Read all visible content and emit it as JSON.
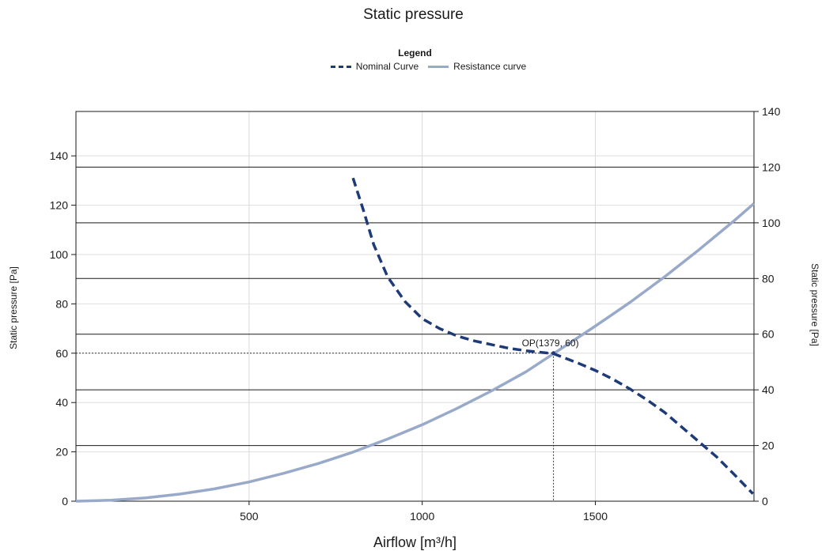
{
  "chart_data": {
    "type": "line",
    "title": "Static pressure",
    "legend_title": "Legend",
    "legend_position": "top-center",
    "xlabel": "Airflow [m³/h]",
    "ylabel": "Static pressure [Pa]",
    "y2label": "Static pressure [Pa]",
    "xlim": [
      0,
      1958
    ],
    "ylim": [
      0,
      158
    ],
    "y2lim": [
      0,
      140
    ],
    "xticks": [
      500,
      1000,
      1500
    ],
    "yticks": [
      0,
      20,
      40,
      60,
      80,
      100,
      120,
      140
    ],
    "y2ticks": [
      0,
      20,
      40,
      60,
      80,
      100,
      120,
      140
    ],
    "grid": true,
    "series": [
      {
        "name": "Nominal Curve",
        "style": "dashed",
        "color": "#1f3a78",
        "x": [
          800,
          830,
          860,
          900,
          950,
          1000,
          1050,
          1100,
          1150,
          1200,
          1250,
          1300,
          1379,
          1450,
          1500,
          1550,
          1600,
          1650,
          1700,
          1750,
          1800,
          1850,
          1900,
          1955
        ],
        "y": [
          131,
          118,
          104,
          91,
          81,
          74,
          70,
          67,
          65,
          63.5,
          62,
          61,
          59.8,
          56,
          53,
          49.5,
          45.5,
          41,
          36,
          30,
          24,
          18,
          11,
          3
        ]
      },
      {
        "name": "Resistance curve",
        "style": "solid",
        "color": "#98a9c9",
        "x": [
          0,
          100,
          200,
          300,
          400,
          500,
          600,
          700,
          800,
          900,
          1000,
          1100,
          1200,
          1300,
          1379,
          1500,
          1600,
          1700,
          1800,
          1900,
          1958
        ],
        "y": [
          0,
          0.4,
          1.3,
          2.9,
          5,
          7.8,
          11.3,
          15.3,
          19.9,
          25.2,
          31,
          37.6,
          44.7,
          52.5,
          59.8,
          71,
          80.6,
          91,
          102,
          113.6,
          120.7
        ]
      }
    ],
    "operating_point": {
      "label": "OP(1379, 60)",
      "x": 1379,
      "y": 60
    }
  }
}
